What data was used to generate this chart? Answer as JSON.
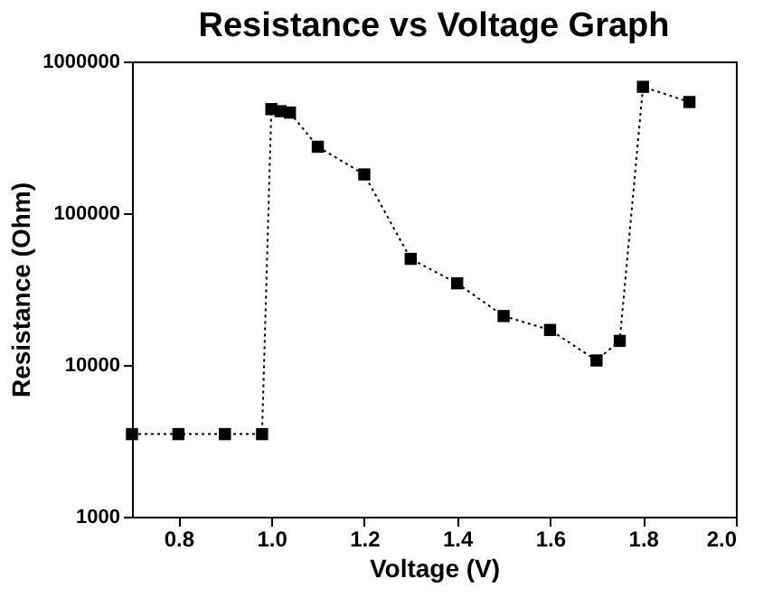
{
  "chart_data": {
    "type": "line",
    "title": "Resistance vs Voltage Graph",
    "xlabel": "Voltage (V)",
    "ylabel": "Resistance (Ohm)",
    "x": [
      0.7,
      0.8,
      0.9,
      0.98,
      1.0,
      1.02,
      1.04,
      1.1,
      1.2,
      1.3,
      1.4,
      1.5,
      1.6,
      1.7,
      1.75,
      1.8,
      1.9
    ],
    "series": [
      {
        "color": "#000000",
        "values": [
          3500,
          3500,
          3500,
          3500,
          485000,
          470000,
          460000,
          274000,
          180000,
          50000,
          34500,
          21000,
          17000,
          10700,
          14400,
          680000,
          540000
        ]
      }
    ],
    "xlim": [
      0.7,
      2.0
    ],
    "xticks": [
      {
        "value": 0.8,
        "label": "0.8"
      },
      {
        "value": 1.0,
        "label": "1.0"
      },
      {
        "value": 1.2,
        "label": "1.2"
      },
      {
        "value": 1.4,
        "label": "1.4"
      },
      {
        "value": 1.6,
        "label": "1.6"
      },
      {
        "value": 1.8,
        "label": "1.8"
      },
      {
        "value": 2.0,
        "label": "2.0"
      }
    ],
    "ylim": [
      1000,
      1000000
    ],
    "yticks": [
      1000,
      10000,
      100000,
      1000000
    ],
    "log": "y",
    "grid": false,
    "marker": "square",
    "line_style": "dotted"
  }
}
